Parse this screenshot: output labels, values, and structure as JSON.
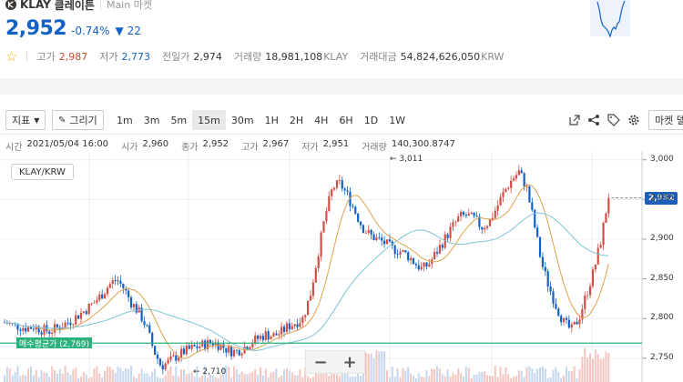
{
  "header": {
    "symbol": "KLAY",
    "name_kr": "클레이튼",
    "market": "Main 마켓",
    "price": "2,952",
    "change_pct": "-0.74%",
    "change_abs": "▼ 22",
    "stats": [
      {
        "label": "고가",
        "value": "2,987",
        "tone": "up",
        "unit": ""
      },
      {
        "label": "저가",
        "value": "2,773",
        "tone": "down",
        "unit": ""
      },
      {
        "label": "전일가",
        "value": "2,974",
        "tone": "norm",
        "unit": ""
      },
      {
        "label": "거래량",
        "value": "18,981,108",
        "tone": "norm",
        "unit": "KLAY"
      },
      {
        "label": "거래대금",
        "value": "54,824,626,050",
        "tone": "norm",
        "unit": "KRW"
      }
    ]
  },
  "toolbar": {
    "indicator_label": "지표",
    "draw_label": "그리기",
    "intervals": [
      "1m",
      "3m",
      "5m",
      "15m",
      "30m",
      "1H",
      "2H",
      "4H",
      "6H",
      "1D",
      "1W"
    ],
    "active_interval": "15m",
    "market_label": "마켓 델"
  },
  "ohlc": {
    "time_label": "시간",
    "time": "2021/05/04 16:00",
    "open_label": "시가",
    "open": "2,960",
    "close_label": "종가",
    "close": "2,952",
    "high_label": "고가",
    "high": "2,967",
    "low_label": "저가",
    "low": "2,951",
    "vol_label": "거래량",
    "vol": "140,300.8747"
  },
  "chart_data": {
    "type": "candlestick",
    "pair": "KLAY/KRW",
    "current_price": "2,952",
    "avg_buy_label": "매수평균가 (2,769)",
    "avg_buy": 2769,
    "high_marker": "3,011",
    "low_marker": "2,710",
    "y_ticks": [
      "3,000",
      "2,950",
      "2,900",
      "2,850",
      "2,800",
      "2,750"
    ],
    "ylim": [
      2720,
      3010
    ],
    "grid": true,
    "series_trend": [
      2795,
      2792,
      2790,
      2788,
      2790,
      2786,
      2784,
      2788,
      2793,
      2798,
      2805,
      2812,
      2820,
      2830,
      2842,
      2850,
      2838,
      2820,
      2808,
      2790,
      2760,
      2740,
      2745,
      2752,
      2758,
      2762,
      2765,
      2768,
      2770,
      2766,
      2760,
      2758,
      2763,
      2770,
      2775,
      2780,
      2778,
      2782,
      2790,
      2795,
      2800,
      2830,
      2880,
      2930,
      2965,
      2970,
      2955,
      2935,
      2915,
      2905,
      2900,
      2895,
      2888,
      2885,
      2880,
      2870,
      2862,
      2870,
      2885,
      2900,
      2915,
      2928,
      2930,
      2925,
      2915,
      2922,
      2940,
      2960,
      2975,
      2985,
      2965,
      2920,
      2870,
      2840,
      2815,
      2795,
      2785,
      2800,
      2830,
      2860,
      2900,
      2955
    ]
  },
  "zoom": {
    "minus": "−",
    "plus": "+"
  }
}
